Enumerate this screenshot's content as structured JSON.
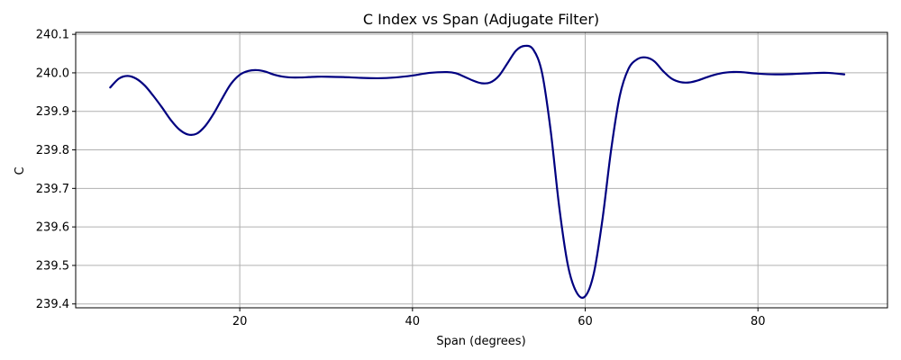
{
  "chart_data": {
    "type": "line",
    "title": "C Index vs Span (Adjugate Filter)",
    "xlabel": "Span (degrees)",
    "ylabel": "C",
    "xlim": [
      1,
      95
    ],
    "ylim": [
      239.39,
      240.105
    ],
    "xticks": [
      20,
      40,
      60,
      80
    ],
    "yticks": [
      239.4,
      239.5,
      239.6,
      239.7,
      239.8,
      239.9,
      240.0,
      240.1
    ],
    "ytick_labels": [
      "239.4",
      "239.5",
      "239.6",
      "239.7",
      "239.8",
      "239.9",
      "240.0",
      "240.1"
    ],
    "grid": true,
    "line_color": "#000080",
    "series": [
      {
        "x": [
          5,
          6,
          7,
          8,
          9,
          10,
          11,
          12,
          13,
          14,
          15,
          16,
          17,
          18,
          19,
          20,
          21,
          22,
          23,
          24,
          25,
          26,
          27,
          28,
          29,
          30,
          32,
          34,
          36,
          38,
          40,
          42,
          44,
          45,
          46,
          47,
          48,
          49,
          50,
          51,
          52,
          53,
          54,
          55,
          56,
          57,
          58,
          59,
          60,
          61,
          62,
          63,
          64,
          65,
          66,
          67,
          68,
          69,
          70,
          71,
          72,
          73,
          74,
          75,
          76,
          77,
          78,
          80,
          82,
          84,
          86,
          88,
          90
        ],
        "values": [
          239.962,
          239.985,
          239.992,
          239.985,
          239.967,
          239.94,
          239.91,
          239.878,
          239.853,
          239.84,
          239.842,
          239.862,
          239.895,
          239.935,
          239.972,
          239.995,
          240.005,
          240.007,
          240.003,
          239.995,
          239.99,
          239.988,
          239.988,
          239.989,
          239.99,
          239.99,
          239.989,
          239.987,
          239.986,
          239.988,
          239.993,
          240.0,
          240.002,
          239.999,
          239.99,
          239.98,
          239.973,
          239.975,
          239.992,
          240.025,
          240.058,
          240.07,
          240.06,
          240.0,
          239.85,
          239.65,
          239.5,
          239.43,
          239.42,
          239.48,
          239.62,
          239.8,
          239.94,
          240.01,
          240.035,
          240.04,
          240.03,
          240.005,
          239.985,
          239.976,
          239.975,
          239.98,
          239.988,
          239.995,
          240.0,
          240.002,
          240.002,
          239.998,
          239.996,
          239.997,
          239.999,
          240.0,
          239.996
        ]
      }
    ]
  }
}
